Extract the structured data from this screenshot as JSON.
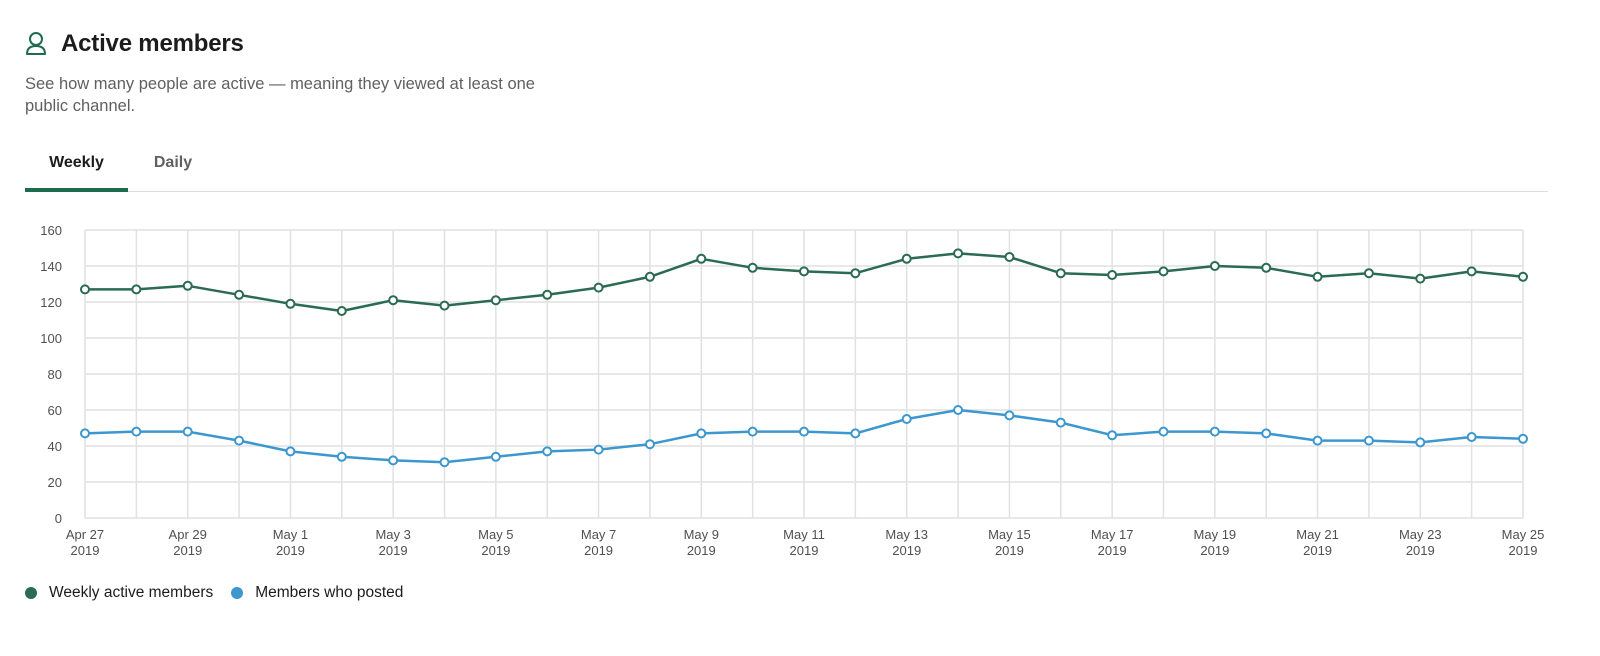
{
  "header": {
    "title": "Active members",
    "icon": "user-icon"
  },
  "description": "See how many people are active — meaning they viewed at least one public channel.",
  "tabs": [
    {
      "label": "Weekly",
      "active": true
    },
    {
      "label": "Daily",
      "active": false
    }
  ],
  "colors": {
    "accent": "#1f6b4f",
    "weekly": "#2a6b52",
    "posted": "#3d97cf",
    "grid": "#e1e1e1",
    "axis_text": "#505050"
  },
  "chart_data": {
    "type": "line",
    "x": [
      "Apr 27 2019",
      "Apr 28 2019",
      "Apr 29 2019",
      "Apr 30 2019",
      "May 1 2019",
      "May 2 2019",
      "May 3 2019",
      "May 4 2019",
      "May 5 2019",
      "May 6 2019",
      "May 7 2019",
      "May 8 2019",
      "May 9 2019",
      "May 10 2019",
      "May 11 2019",
      "May 12 2019",
      "May 13 2019",
      "May 14 2019",
      "May 15 2019",
      "May 16 2019",
      "May 17 2019",
      "May 18 2019",
      "May 19 2019",
      "May 20 2019",
      "May 21 2019",
      "May 22 2019",
      "May 23 2019",
      "May 24 2019",
      "May 25 2019"
    ],
    "x_tick_labels": [
      {
        "date": "Apr 27",
        "year": "2019"
      },
      {
        "date": "Apr 29",
        "year": "2019"
      },
      {
        "date": "May 1",
        "year": "2019"
      },
      {
        "date": "May 3",
        "year": "2019"
      },
      {
        "date": "May 5",
        "year": "2019"
      },
      {
        "date": "May 7",
        "year": "2019"
      },
      {
        "date": "May 9",
        "year": "2019"
      },
      {
        "date": "May 11",
        "year": "2019"
      },
      {
        "date": "May 13",
        "year": "2019"
      },
      {
        "date": "May 15",
        "year": "2019"
      },
      {
        "date": "May 17",
        "year": "2019"
      },
      {
        "date": "May 19",
        "year": "2019"
      },
      {
        "date": "May 21",
        "year": "2019"
      },
      {
        "date": "May 23",
        "year": "2019"
      },
      {
        "date": "May 25",
        "year": "2019"
      }
    ],
    "y_ticks": [
      0,
      20,
      40,
      60,
      80,
      100,
      120,
      140,
      160
    ],
    "ylim": [
      0,
      160
    ],
    "grid": true,
    "legend_position": "bottom-left",
    "series": [
      {
        "name": "Weekly active members",
        "color": "#2a6b52",
        "values": [
          127,
          127,
          129,
          124,
          119,
          115,
          121,
          118,
          121,
          124,
          128,
          134,
          144,
          139,
          137,
          136,
          144,
          147,
          145,
          136,
          135,
          137,
          140,
          139,
          134,
          136,
          133,
          137,
          134
        ]
      },
      {
        "name": "Members who posted",
        "color": "#3d97cf",
        "values": [
          47,
          48,
          48,
          43,
          37,
          34,
          32,
          31,
          34,
          37,
          38,
          41,
          47,
          48,
          48,
          47,
          55,
          60,
          57,
          53,
          46,
          48,
          48,
          47,
          43,
          43,
          42,
          45,
          44
        ]
      }
    ]
  }
}
